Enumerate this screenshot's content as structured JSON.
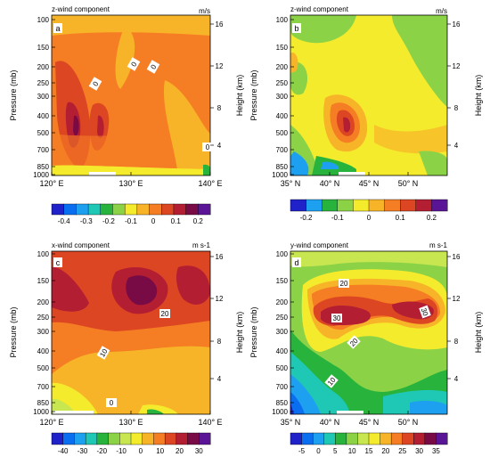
{
  "chart_data": [
    {
      "type": "heatmap",
      "panel_label": "a",
      "title": "z-wind component",
      "units": "m/s",
      "xlabel": "",
      "ylabel": "Pressure (mb)",
      "ylabel_right": "Height (km)",
      "x_ticks": [
        "120° E",
        "130° E",
        "140° E"
      ],
      "y_ticks": [
        "100",
        "150",
        "200",
        "250",
        "300",
        "400",
        "500",
        "700",
        "850",
        "1000"
      ],
      "y2_ticks": [
        "16",
        "12",
        "8",
        "4"
      ],
      "colorbar_labels": [
        "-0.4",
        "-0.3",
        "-0.2",
        "-0.1",
        "0",
        "0.1",
        "0.2"
      ],
      "contour_labels": [
        "0",
        "0",
        "0",
        "0"
      ],
      "colors": [
        "#1e22c8",
        "#0a6ef0",
        "#1ea0f0",
        "#1ec8b4",
        "#28b43c",
        "#8cd246",
        "#f5eb2d",
        "#f8b428",
        "#f57d23",
        "#dc4623",
        "#b41e32",
        "#780a46",
        "#5a1496"
      ]
    },
    {
      "type": "heatmap",
      "panel_label": "b",
      "title": "z-wind component",
      "units": "m/s",
      "xlabel": "",
      "ylabel": "Pressure (mb)",
      "ylabel_right": "Height (km)",
      "x_ticks": [
        "35° N",
        "40° N",
        "45° N",
        "50° N"
      ],
      "y_ticks": [
        "100",
        "150",
        "200",
        "250",
        "300",
        "400",
        "500",
        "700",
        "850",
        "1000"
      ],
      "y2_ticks": [
        "16",
        "12",
        "8",
        "4"
      ],
      "colorbar_labels": [
        "-0.2",
        "-0.1",
        "0",
        "0.1",
        "0.2"
      ],
      "contour_labels": [],
      "colors": [
        "#1e22c8",
        "#1ea0f0",
        "#28b43c",
        "#8cd246",
        "#f5eb2d",
        "#f8b428",
        "#f57d23",
        "#dc4623",
        "#b41e32",
        "#5a1496"
      ]
    },
    {
      "type": "heatmap",
      "panel_label": "c",
      "title": "x-wind component",
      "units": "m s-1",
      "xlabel": "",
      "ylabel": "Pressure (mb)",
      "ylabel_right": "Height (km)",
      "x_ticks": [
        "120° E",
        "130° E",
        "140° E"
      ],
      "y_ticks": [
        "100",
        "150",
        "200",
        "250",
        "300",
        "400",
        "500",
        "700",
        "850",
        "1000"
      ],
      "y2_ticks": [
        "16",
        "12",
        "8",
        "4"
      ],
      "colorbar_labels": [
        "-40",
        "-30",
        "-20",
        "-10",
        "0",
        "10",
        "20",
        "30"
      ],
      "contour_labels": [
        "20",
        "10",
        "0"
      ],
      "colors": [
        "#1e22c8",
        "#0a6ef0",
        "#1ea0f0",
        "#1ec8b4",
        "#28b43c",
        "#8cd246",
        "#c8e650",
        "#f5eb2d",
        "#f8b428",
        "#f57d23",
        "#dc4623",
        "#b41e32",
        "#780a46",
        "#5a1496"
      ]
    },
    {
      "type": "heatmap",
      "panel_label": "d",
      "title": "y-wind component",
      "units": "m s-1",
      "xlabel": "",
      "ylabel": "Pressure (mb)",
      "ylabel_right": "Height (km)",
      "x_ticks": [
        "35° N",
        "40° N",
        "45° N",
        "50° N"
      ],
      "y_ticks": [
        "100",
        "150",
        "200",
        "250",
        "300",
        "400",
        "500",
        "700",
        "850",
        "1000"
      ],
      "y2_ticks": [
        "16",
        "12",
        "8",
        "4"
      ],
      "colorbar_labels": [
        "-5",
        "0",
        "5",
        "10",
        "15",
        "20",
        "25",
        "30",
        "35"
      ],
      "contour_labels": [
        "20",
        "30",
        "30",
        "20",
        "10"
      ],
      "colors": [
        "#1e22c8",
        "#0a6ef0",
        "#1ea0f0",
        "#1ec8b4",
        "#28b43c",
        "#8cd246",
        "#c8e650",
        "#f5eb2d",
        "#f8b428",
        "#f57d23",
        "#dc4623",
        "#b41e32",
        "#780a46",
        "#5a1496"
      ]
    }
  ]
}
